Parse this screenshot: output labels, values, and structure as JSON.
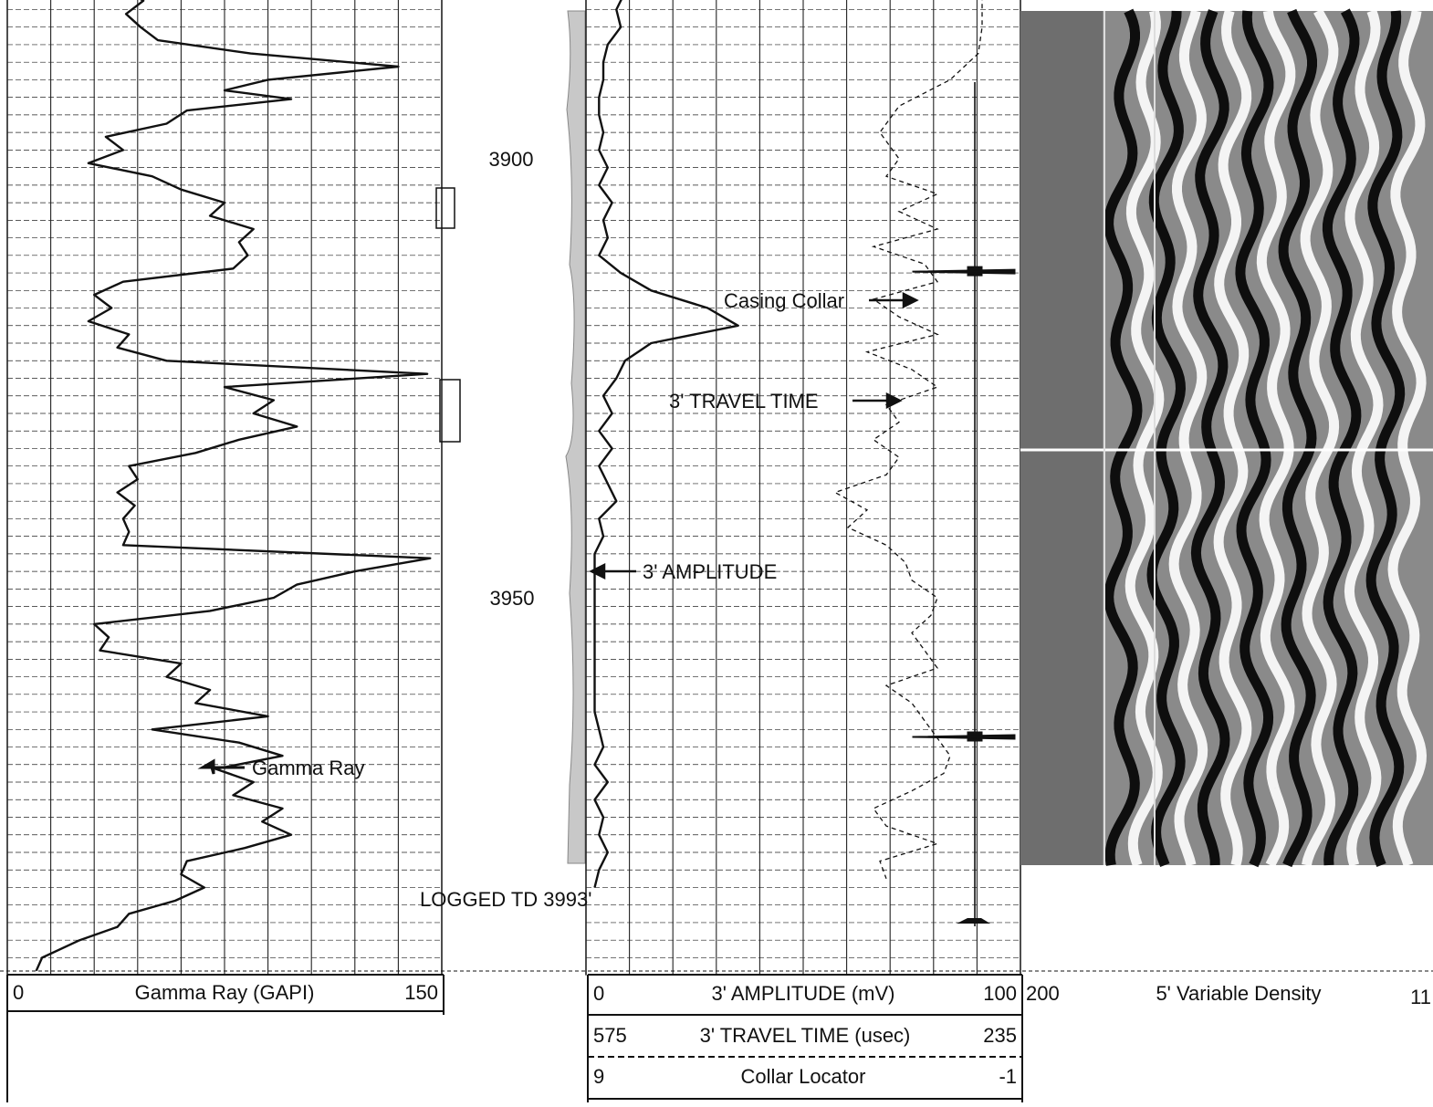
{
  "chart_data": [
    {
      "type": "line",
      "track": "gamma",
      "depth_unit": "ft",
      "depth_range": [
        3873,
        3993
      ],
      "xlim": [
        0,
        150
      ],
      "header": {
        "left": "0",
        "title": "Gamma Ray (GAPI)",
        "right": "150"
      },
      "series": [
        {
          "name": "Gamma Ray",
          "depth": [
            3873.0,
            3875.0,
            3877.0,
            3879.0,
            3880.5,
            3882.0,
            3883.5,
            3885.0,
            3886.5,
            3888.0,
            3889.5,
            3891.0,
            3892.2,
            3893.2,
            3894.5,
            3896.0,
            3897.5,
            3899.0,
            3900.5,
            3902.0,
            3903.5,
            3905.0,
            3906.5,
            3908.0,
            3909.5,
            3911.0,
            3912.5,
            3914.0,
            3915.5,
            3917.0,
            3918.5,
            3920.0,
            3921.5,
            3923.0,
            3924.5,
            3926.0,
            3927.5,
            3929.0,
            3930.5,
            3932.0,
            3933.5,
            3935.0,
            3936.5,
            3938.0,
            3939.5,
            3941.0,
            3942.5,
            3944.0,
            3945.5,
            3947.0,
            3948.5,
            3950.0,
            3951.5,
            3953.0,
            3954.5,
            3956.0,
            3957.5,
            3959.0,
            3960.5,
            3962.0,
            3963.5,
            3965.0,
            3966.5,
            3968.0,
            3969.5,
            3971.0,
            3972.5,
            3974.0,
            3975.5,
            3977.0,
            3978.5,
            3980.0,
            3981.5,
            3983.0,
            3984.5,
            3986.0,
            3987.5,
            3989.0,
            3991.0,
            3992.5
          ],
          "value": [
            38,
            45,
            40,
            48,
            39,
            47,
            41,
            46,
            52,
            84,
            135,
            90,
            75,
            98,
            62,
            55,
            34,
            40,
            28,
            50,
            60,
            75,
            70,
            85,
            80,
            83,
            78,
            40,
            30,
            36,
            28,
            42,
            38,
            55,
            145,
            75,
            92,
            85,
            100,
            80,
            65,
            42,
            45,
            38,
            44,
            40,
            42,
            40,
            146,
            120,
            100,
            92,
            70,
            30,
            35,
            32,
            60,
            55,
            70,
            65,
            90,
            50,
            80,
            95,
            72,
            85,
            78,
            95,
            88,
            98,
            82,
            62,
            60,
            68,
            58,
            42,
            38,
            25,
            12,
            10
          ]
        }
      ]
    },
    {
      "type": "line",
      "track": "amplitude_travel_time",
      "depth_unit": "ft",
      "depth_range": [
        3873,
        3993
      ],
      "headers": [
        {
          "left": "0",
          "title": "3' AMPLITUDE (mV)",
          "right": "100"
        },
        {
          "left": "575",
          "title": "3' TRAVEL TIME (usec)",
          "right": "235"
        },
        {
          "left": "9",
          "title": "Collar Locator",
          "right": "-1"
        }
      ],
      "series": [
        {
          "name": "3' AMPLITUDE",
          "unit": "mV",
          "xlim": [
            0,
            100
          ],
          "depth": [
            3873.0,
            3875.0,
            3877.0,
            3879.0,
            3881.0,
            3883.0,
            3885.0,
            3887.0,
            3889.0,
            3891.0,
            3893.0,
            3895.0,
            3897.0,
            3899.0,
            3901.0,
            3903.0,
            3905.0,
            3907.0,
            3909.0,
            3911.0,
            3913.0,
            3915.0,
            3917.0,
            3919.0,
            3921.0,
            3923.0,
            3925.0,
            3927.0,
            3929.0,
            3931.0,
            3933.0,
            3935.0,
            3937.0,
            3939.0,
            3941.0,
            3943.0,
            3945.0,
            3947.0,
            3949.0,
            3951.0,
            3953.0,
            3955.0,
            3957.0,
            3959.0,
            3961.0,
            3963.0,
            3965.0,
            3967.0,
            3969.0,
            3971.0,
            3973.0,
            3975.0,
            3977.0,
            3979.0,
            3981.0,
            3983.0
          ],
          "value": [
            7,
            5,
            8,
            6,
            9,
            7,
            8,
            5,
            4,
            4,
            3,
            3,
            4,
            3,
            5,
            3,
            6,
            4,
            5,
            3,
            8,
            15,
            28,
            35,
            15,
            9,
            7,
            4,
            6,
            3,
            6,
            3,
            5,
            7,
            3,
            4,
            2,
            2,
            2,
            2,
            2,
            2,
            2,
            2,
            2,
            2,
            3,
            4,
            2,
            5,
            2,
            4,
            3,
            5,
            3,
            2
          ]
        },
        {
          "name": "3' TRAVEL TIME",
          "unit": "usec",
          "xlim": [
            575,
            235
          ],
          "depth": [
            3873.0,
            3876.0,
            3879.0,
            3882.0,
            3885.0,
            3888.0,
            3891.0,
            3894.0,
            3897.0,
            3900.0,
            3902.0,
            3904.0,
            3906.0,
            3908.0,
            3910.0,
            3912.0,
            3914.0,
            3916.0,
            3918.0,
            3920.0,
            3922.0,
            3924.0,
            3926.0,
            3928.0,
            3930.0,
            3932.0,
            3934.0,
            3936.0,
            3938.0,
            3940.0,
            3942.0,
            3944.0,
            3946.0,
            3948.0,
            3950.0,
            3952.0,
            3954.0,
            3956.0,
            3958.0,
            3960.0,
            3962.0,
            3964.0,
            3966.0,
            3968.0,
            3970.0,
            3972.0,
            3974.0,
            3976.0,
            3978.0,
            3980.0,
            3982.0
          ],
          "value": [
            265,
            265,
            265,
            265,
            265,
            268,
            290,
            330,
            345,
            330,
            340,
            300,
            330,
            300,
            350,
            310,
            300,
            350,
            330,
            300,
            355,
            320,
            300,
            340,
            330,
            350,
            330,
            340,
            380,
            355,
            370,
            340,
            325,
            320,
            300,
            305,
            320,
            310,
            300,
            340,
            320,
            310,
            300,
            290,
            295,
            320,
            350,
            340,
            300,
            345,
            340
          ]
        },
        {
          "name": "Collar Locator",
          "xlim": [
            9,
            -1
          ],
          "collars_depth": [
            3912.8,
            3965.8
          ]
        }
      ],
      "annotations": [
        "Casing Collar",
        "3' TRAVEL TIME",
        "3' AMPLITUDE",
        "Gamma Ray",
        "LOGGED TD 3993'"
      ]
    },
    {
      "type": "heatmap",
      "track": "variable_density",
      "header": {
        "left": "200",
        "title": "5' Variable Density",
        "right": "11"
      }
    }
  ],
  "depth_labels": [
    "3900",
    "3950"
  ],
  "td_label": "LOGGED TD 3993'",
  "annotations": {
    "gamma": "Gamma Ray",
    "casing_collar": "Casing Collar",
    "travel_time": "3' TRAVEL TIME",
    "amplitude": "3' AMPLITUDE"
  },
  "colors": {
    "ink": "#111111",
    "grid": "#222222",
    "vdl_bg": "#8a8a8a"
  }
}
